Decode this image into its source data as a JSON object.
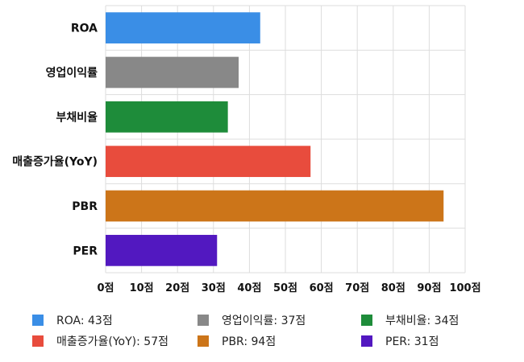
{
  "chart_data": {
    "type": "bar",
    "orientation": "horizontal",
    "categories": [
      "ROA",
      "영업이익률",
      "부채비율",
      "매출증가율(YoY)",
      "PBR",
      "PER"
    ],
    "values": [
      43,
      37,
      34,
      57,
      94,
      31
    ],
    "colors": [
      "#3a8ee6",
      "#888888",
      "#1e8c3a",
      "#e84c3d",
      "#cc7519",
      "#5218c0"
    ],
    "xlim": [
      0,
      100
    ],
    "ticks": [
      0,
      10,
      20,
      30,
      40,
      50,
      60,
      70,
      80,
      90,
      100
    ],
    "tick_unit": "점",
    "grid": true,
    "legend_position": "bottom",
    "legend": [
      {
        "label": "ROA: 43점",
        "color": "#3a8ee6"
      },
      {
        "label": "영업이익률: 37점",
        "color": "#888888"
      },
      {
        "label": "부채비율: 34점",
        "color": "#1e8c3a"
      },
      {
        "label": "매출증가율(YoY): 57점",
        "color": "#e84c3d"
      },
      {
        "label": "PBR: 94점",
        "color": "#cc7519"
      },
      {
        "label": "PER: 31점",
        "color": "#5218c0"
      }
    ]
  }
}
